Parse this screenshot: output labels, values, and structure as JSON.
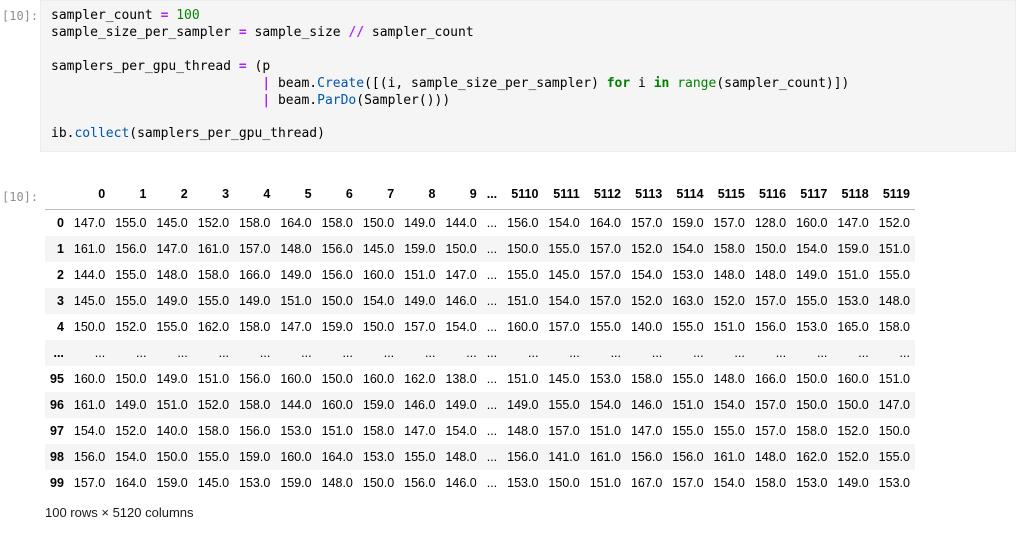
{
  "cell": {
    "input_prompt": "[10]:",
    "code_lines": [
      [
        {
          "t": "sampler_count "
        },
        {
          "t": "=",
          "c": "op"
        },
        {
          "t": " "
        },
        {
          "t": "100",
          "c": "num"
        }
      ],
      [
        {
          "t": "sample_size_per_sampler "
        },
        {
          "t": "=",
          "c": "op"
        },
        {
          "t": " sample_size "
        },
        {
          "t": "//",
          "c": "op"
        },
        {
          "t": " sampler_count"
        }
      ],
      [],
      [
        {
          "t": "samplers_per_gpu_thread "
        },
        {
          "t": "=",
          "c": "op"
        },
        {
          "t": " (p"
        }
      ],
      [
        {
          "t": "                           "
        },
        {
          "t": "|",
          "c": "op"
        },
        {
          "t": " beam."
        },
        {
          "t": "Create",
          "c": "prop"
        },
        {
          "t": "([(i, sample_size_per_sampler) "
        },
        {
          "t": "for",
          "c": "kw"
        },
        {
          "t": " i "
        },
        {
          "t": "in",
          "c": "kw"
        },
        {
          "t": " "
        },
        {
          "t": "range",
          "c": "builtin"
        },
        {
          "t": "(sampler_count)])"
        }
      ],
      [
        {
          "t": "                           "
        },
        {
          "t": "|",
          "c": "op"
        },
        {
          "t": " beam."
        },
        {
          "t": "ParDo",
          "c": "prop"
        },
        {
          "t": "(Sampler()))"
        }
      ],
      [],
      [
        {
          "t": "ib."
        },
        {
          "t": "collect",
          "c": "prop"
        },
        {
          "t": "(samplers_per_gpu_thread)"
        }
      ]
    ]
  },
  "output": {
    "prompt": "[10]:",
    "table": {
      "corner_label": "",
      "columns": [
        "0",
        "1",
        "2",
        "3",
        "4",
        "5",
        "6",
        "7",
        "8",
        "9",
        "...",
        "5110",
        "5111",
        "5112",
        "5113",
        "5114",
        "5115",
        "5116",
        "5117",
        "5118",
        "5119"
      ],
      "rows": [
        {
          "index": "0",
          "values": [
            "147.0",
            "155.0",
            "145.0",
            "152.0",
            "158.0",
            "164.0",
            "158.0",
            "150.0",
            "149.0",
            "144.0",
            "...",
            "156.0",
            "154.0",
            "164.0",
            "157.0",
            "159.0",
            "157.0",
            "128.0",
            "160.0",
            "147.0",
            "152.0"
          ]
        },
        {
          "index": "1",
          "values": [
            "161.0",
            "156.0",
            "147.0",
            "161.0",
            "157.0",
            "148.0",
            "156.0",
            "145.0",
            "159.0",
            "150.0",
            "...",
            "150.0",
            "155.0",
            "157.0",
            "152.0",
            "154.0",
            "158.0",
            "150.0",
            "154.0",
            "159.0",
            "151.0"
          ]
        },
        {
          "index": "2",
          "values": [
            "144.0",
            "155.0",
            "148.0",
            "158.0",
            "166.0",
            "149.0",
            "156.0",
            "160.0",
            "151.0",
            "147.0",
            "...",
            "155.0",
            "145.0",
            "157.0",
            "154.0",
            "153.0",
            "148.0",
            "148.0",
            "149.0",
            "151.0",
            "155.0"
          ]
        },
        {
          "index": "3",
          "values": [
            "145.0",
            "155.0",
            "149.0",
            "155.0",
            "149.0",
            "151.0",
            "150.0",
            "154.0",
            "149.0",
            "146.0",
            "...",
            "151.0",
            "154.0",
            "157.0",
            "152.0",
            "163.0",
            "152.0",
            "157.0",
            "155.0",
            "153.0",
            "148.0"
          ]
        },
        {
          "index": "4",
          "values": [
            "150.0",
            "152.0",
            "155.0",
            "162.0",
            "158.0",
            "147.0",
            "159.0",
            "150.0",
            "157.0",
            "154.0",
            "...",
            "160.0",
            "157.0",
            "155.0",
            "140.0",
            "155.0",
            "151.0",
            "156.0",
            "153.0",
            "165.0",
            "158.0"
          ]
        },
        {
          "index": "...",
          "values": [
            "...",
            "...",
            "...",
            "...",
            "...",
            "...",
            "...",
            "...",
            "...",
            "...",
            "...",
            "...",
            "...",
            "...",
            "...",
            "...",
            "...",
            "...",
            "...",
            "...",
            "..."
          ]
        },
        {
          "index": "95",
          "values": [
            "160.0",
            "150.0",
            "149.0",
            "151.0",
            "156.0",
            "160.0",
            "150.0",
            "160.0",
            "162.0",
            "138.0",
            "...",
            "151.0",
            "145.0",
            "153.0",
            "158.0",
            "155.0",
            "148.0",
            "166.0",
            "150.0",
            "160.0",
            "151.0"
          ]
        },
        {
          "index": "96",
          "values": [
            "161.0",
            "149.0",
            "151.0",
            "152.0",
            "158.0",
            "144.0",
            "160.0",
            "159.0",
            "146.0",
            "149.0",
            "...",
            "149.0",
            "155.0",
            "154.0",
            "146.0",
            "151.0",
            "154.0",
            "157.0",
            "150.0",
            "150.0",
            "147.0"
          ]
        },
        {
          "index": "97",
          "values": [
            "154.0",
            "152.0",
            "140.0",
            "158.0",
            "156.0",
            "153.0",
            "151.0",
            "158.0",
            "147.0",
            "154.0",
            "...",
            "148.0",
            "157.0",
            "151.0",
            "147.0",
            "155.0",
            "155.0",
            "157.0",
            "158.0",
            "152.0",
            "150.0"
          ]
        },
        {
          "index": "98",
          "values": [
            "156.0",
            "154.0",
            "150.0",
            "155.0",
            "159.0",
            "160.0",
            "164.0",
            "153.0",
            "155.0",
            "148.0",
            "...",
            "156.0",
            "141.0",
            "161.0",
            "156.0",
            "156.0",
            "161.0",
            "148.0",
            "162.0",
            "152.0",
            "155.0"
          ]
        },
        {
          "index": "99",
          "values": [
            "157.0",
            "164.0",
            "159.0",
            "145.0",
            "153.0",
            "159.0",
            "148.0",
            "150.0",
            "156.0",
            "146.0",
            "...",
            "153.0",
            "150.0",
            "151.0",
            "167.0",
            "157.0",
            "154.0",
            "158.0",
            "153.0",
            "149.0",
            "153.0"
          ]
        }
      ]
    },
    "shape_text": "100 rows × 5120 columns"
  },
  "colors": {
    "cell_background": "#f5f5f5",
    "stripe_background": "#f5f5f5",
    "prompt_gray": "#8f8f8f",
    "operator": "#aa22ff",
    "keyword": "#008000",
    "number": "#008800",
    "builtin": "#008000",
    "property_blue": "#0055aa",
    "header_border": "#bcbcbc"
  }
}
